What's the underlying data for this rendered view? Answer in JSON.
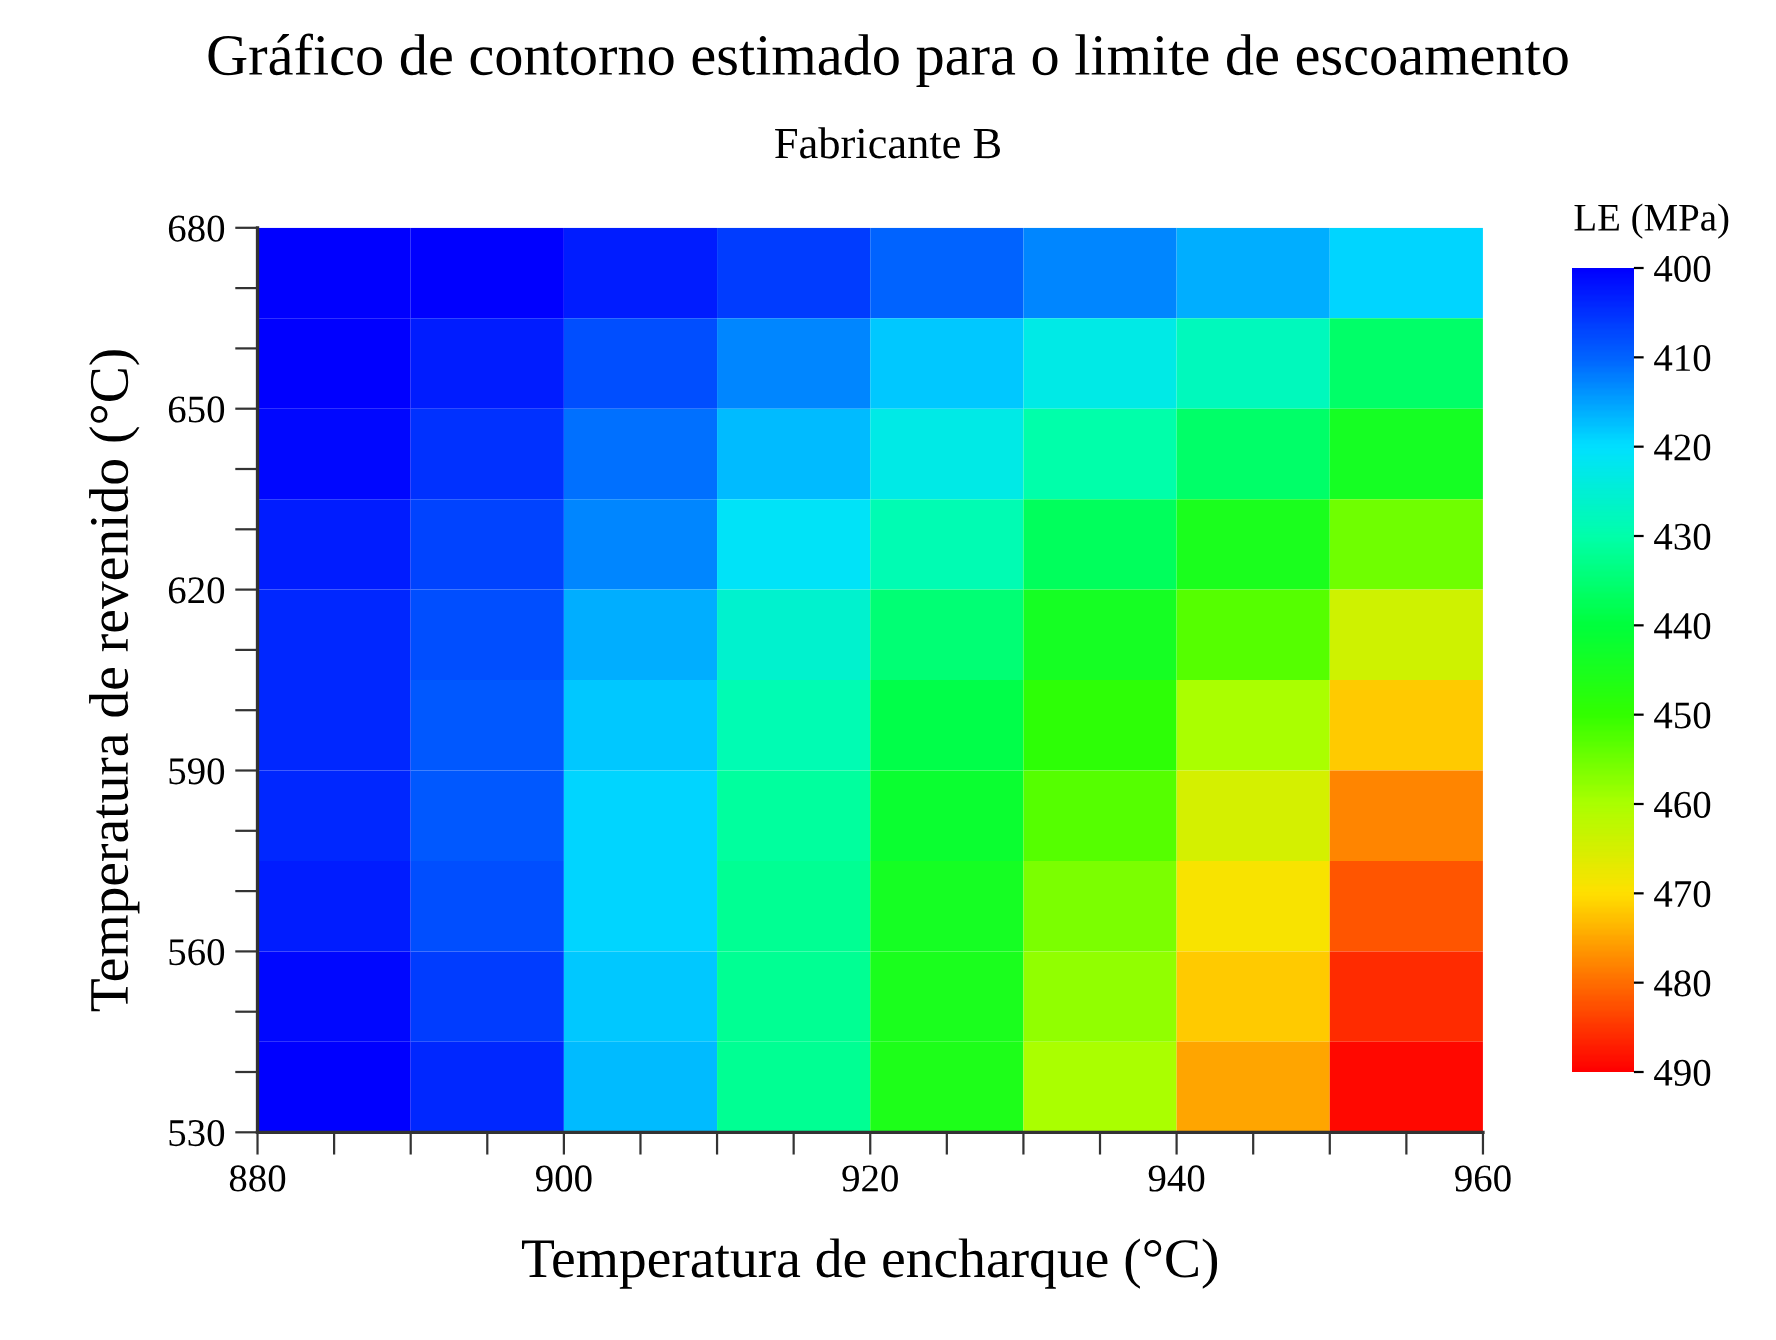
{
  "chart_data": {
    "type": "heatmap",
    "title": "Gráfico de contorno estimado para o limite de escoamento",
    "subtitle": "Fabricante B",
    "xlabel": "Temperatura de encharque (°C)",
    "ylabel": "Temperatura de revenido (°C)",
    "clabel": "LE (MPa)",
    "x": [
      885,
      895,
      905,
      915,
      925,
      935,
      945,
      955
    ],
    "y": [
      672.5,
      657.5,
      642.5,
      627.5,
      612.5,
      597.5,
      582.5,
      567.5,
      552.5,
      537.5
    ],
    "cells": [
      [
        398,
        400,
        403,
        406,
        410,
        413,
        416,
        419
      ],
      [
        400,
        403,
        408,
        413,
        418,
        423,
        428,
        436
      ],
      [
        401,
        405,
        411,
        417,
        423,
        430,
        436,
        444
      ],
      [
        403,
        407,
        413,
        421,
        429,
        437,
        445,
        455
      ],
      [
        404,
        408,
        416,
        426,
        435,
        444,
        453,
        464
      ],
      [
        404,
        409,
        418,
        429,
        439,
        449,
        460,
        472
      ],
      [
        404,
        409,
        419,
        431,
        442,
        453,
        465,
        478
      ],
      [
        403,
        408,
        419,
        432,
        444,
        456,
        469,
        482
      ],
      [
        401,
        406,
        418,
        432,
        445,
        458,
        472,
        486
      ],
      [
        399,
        404,
        417,
        432,
        446,
        460,
        475,
        489
      ]
    ],
    "clim": [
      400,
      490
    ],
    "cticks": [
      400,
      410,
      420,
      430,
      440,
      450,
      460,
      470,
      480,
      490
    ],
    "colors": [
      "#0000ff",
      "#0064ff",
      "#00e1ff",
      "#00ffaa",
      "#00ff3c",
      "#32ff00",
      "#aaff00",
      "#ffe100",
      "#ff6e00",
      "#ff0000"
    ],
    "xlim": [
      880,
      960
    ],
    "ylim": [
      530,
      680
    ],
    "xticks": [
      880,
      {
        "value": 885,
        "label": null
      },
      {
        "value": 890,
        "label": null
      },
      {
        "value": 895,
        "label": null
      },
      900,
      {
        "value": 905,
        "label": null
      },
      {
        "value": 910,
        "label": null
      },
      {
        "value": 915,
        "label": null
      },
      920,
      {
        "value": 925,
        "label": null
      },
      {
        "value": 930,
        "label": null
      },
      {
        "value": 935,
        "label": null
      },
      940,
      {
        "value": 945,
        "label": null
      },
      {
        "value": 950,
        "label": null
      },
      {
        "value": 955,
        "label": null
      },
      960
    ],
    "yticks": [
      530,
      {
        "value": 540,
        "label": null
      },
      {
        "value": 550,
        "label": null
      },
      560,
      {
        "value": 570,
        "label": null
      },
      {
        "value": 580,
        "label": null
      },
      590,
      {
        "value": 600,
        "label": null
      },
      {
        "value": 610,
        "label": null
      },
      620,
      {
        "value": 630,
        "label": null
      },
      {
        "value": 640,
        "label": null
      },
      650,
      {
        "value": 660,
        "label": null
      },
      {
        "value": 670,
        "label": null
      },
      680
    ],
    "grid": false
  }
}
